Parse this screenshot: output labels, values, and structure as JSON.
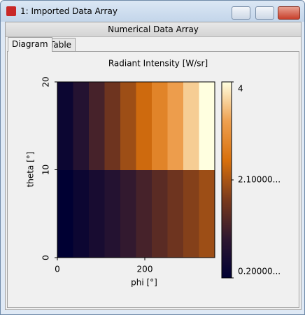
{
  "window": {
    "title": "1: Imported Data Array",
    "header": "Numerical Data Array",
    "tabs": [
      "Diagram",
      "Table"
    ]
  },
  "chart_data": {
    "type": "heatmap",
    "title": "Radiant Intensity  [W/sr]",
    "x_label": "phi [°]",
    "y_label": "theta [°]",
    "xlim": [
      0,
      360
    ],
    "ylim": [
      0,
      20
    ],
    "xticks": [
      0,
      200
    ],
    "yticks": [
      0,
      10,
      20
    ],
    "values": [
      [
        0.2,
        0.4,
        0.6,
        0.8,
        1.0,
        1.2,
        1.4,
        1.6,
        1.8,
        2.0
      ],
      [
        0.4,
        0.8,
        1.2,
        1.6,
        2.0,
        2.4,
        2.8,
        3.2,
        3.6,
        4.0
      ]
    ],
    "clim": [
      0.2,
      4
    ],
    "cticks": [
      {
        "value": 4,
        "label": "4"
      },
      {
        "value": 2.1,
        "label": "2.10000..."
      },
      {
        "value": 0.2,
        "label": "0.20000..."
      }
    ],
    "colormap": [
      "#000033",
      "#2e1730",
      "#7a3a1c",
      "#d8700c",
      "#eea050",
      "#ffffe0"
    ]
  }
}
